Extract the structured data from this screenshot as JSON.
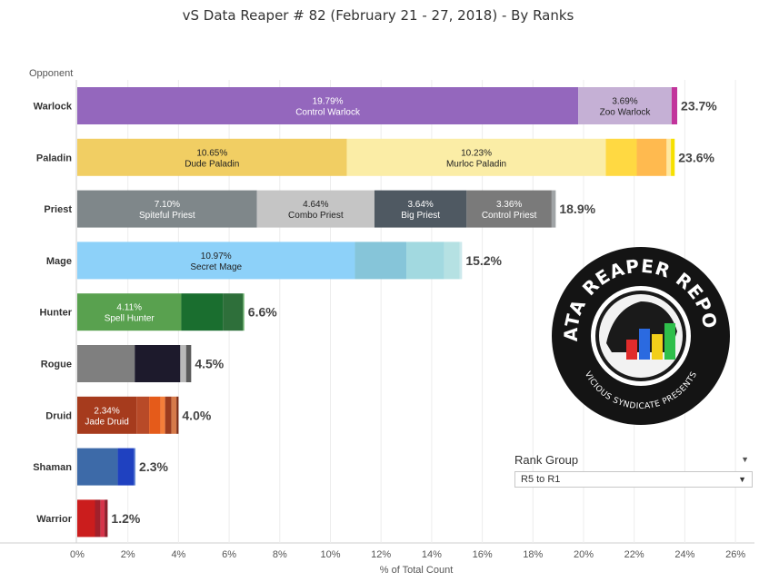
{
  "chart_data": {
    "type": "bar",
    "orientation": "horizontal",
    "stacked": true,
    "title": "vS Data Reaper #  82 (February 21 - 27, 2018) - By Ranks",
    "xlabel": "% of Total Count",
    "ylabel": "Opponent",
    "xlim": [
      0,
      26
    ],
    "x_ticks": [
      "0%",
      "2%",
      "4%",
      "6%",
      "8%",
      "10%",
      "12%",
      "14%",
      "16%",
      "18%",
      "20%",
      "22%",
      "24%",
      "26%"
    ],
    "grid": true,
    "categories": [
      "Warlock",
      "Paladin",
      "Priest",
      "Mage",
      "Hunter",
      "Rogue",
      "Druid",
      "Shaman",
      "Warrior"
    ],
    "totals": [
      "23.7%",
      "23.6%",
      "18.9%",
      "15.2%",
      "6.6%",
      "4.5%",
      "4.0%",
      "2.3%",
      "1.2%"
    ],
    "segments": [
      [
        {
          "value": 19.79,
          "color": "#9467bd",
          "pct": "19.79%",
          "name": "Control Warlock",
          "light": true
        },
        {
          "value": 3.69,
          "color": "#c5b0d5",
          "pct": "3.69%",
          "name": "Zoo Warlock",
          "light": false
        },
        {
          "value": 0.22,
          "color": "#c2349b",
          "pct": "",
          "name": "",
          "light": false
        }
      ],
      [
        {
          "value": 10.65,
          "color": "#f1ce63",
          "pct": "10.65%",
          "name": "Dude Paladin",
          "light": false
        },
        {
          "value": 10.23,
          "color": "#fbeda6",
          "pct": "10.23%",
          "name": "Murloc Paladin",
          "light": false
        },
        {
          "value": 1.22,
          "color": "#ffd942",
          "pct": "",
          "name": "",
          "light": false
        },
        {
          "value": 1.18,
          "color": "#ffba4f",
          "pct": "",
          "name": "",
          "light": false
        },
        {
          "value": 0.17,
          "color": "#ffe8a0",
          "pct": "",
          "name": "",
          "light": false
        },
        {
          "value": 0.15,
          "color": "#f6e000",
          "pct": "",
          "name": "",
          "light": false
        }
      ],
      [
        {
          "value": 7.1,
          "color": "#7f878a",
          "pct": "7.10%",
          "name": "Spiteful Priest",
          "light": true
        },
        {
          "value": 4.64,
          "color": "#c5c5c5",
          "pct": "4.64%",
          "name": "Combo Priest",
          "light": false
        },
        {
          "value": 3.64,
          "color": "#4f5962",
          "pct": "3.64%",
          "name": "Big Priest",
          "light": true
        },
        {
          "value": 3.36,
          "color": "#7a7a7a",
          "pct": "3.36%",
          "name": "Control Priest",
          "light": true
        },
        {
          "value": 0.16,
          "color": "#a0a4a6",
          "pct": "",
          "name": "",
          "light": false
        }
      ],
      [
        {
          "value": 10.97,
          "color": "#8dd1f9",
          "pct": "10.97%",
          "name": "Secret Mage",
          "light": false
        },
        {
          "value": 2.03,
          "color": "#86c5d9",
          "pct": "",
          "name": "",
          "light": false
        },
        {
          "value": 1.5,
          "color": "#a2d9e0",
          "pct": "",
          "name": "",
          "light": false
        },
        {
          "value": 0.6,
          "color": "#b5e1e3",
          "pct": "",
          "name": "",
          "light": false
        },
        {
          "value": 0.1,
          "color": "#cde9ec",
          "pct": "",
          "name": "",
          "light": false
        }
      ],
      [
        {
          "value": 4.11,
          "color": "#59a14f",
          "pct": "4.11%",
          "name": "Spell Hunter",
          "light": true
        },
        {
          "value": 1.64,
          "color": "#1a6e2f",
          "pct": "",
          "name": "",
          "light": false
        },
        {
          "value": 0.8,
          "color": "#2e6f3a",
          "pct": "",
          "name": "",
          "light": false
        },
        {
          "value": 0.05,
          "color": "#7cbf7c",
          "pct": "",
          "name": "",
          "light": false
        }
      ],
      [
        {
          "value": 2.27,
          "color": "#7f7f7f",
          "pct": "",
          "name": "",
          "light": false
        },
        {
          "value": 1.8,
          "color": "#1d1a2c",
          "pct": "",
          "name": "",
          "light": false
        },
        {
          "value": 0.23,
          "color": "#b9b9b9",
          "pct": "",
          "name": "",
          "light": false
        },
        {
          "value": 0.2,
          "color": "#5a5a5a",
          "pct": "",
          "name": "",
          "light": false
        }
      ],
      [
        {
          "value": 2.34,
          "color": "#a63b1d",
          "pct": "2.34%",
          "name": "Jade Druid",
          "light": true
        },
        {
          "value": 0.5,
          "color": "#b84a28",
          "pct": "",
          "name": "",
          "light": false
        },
        {
          "value": 0.45,
          "color": "#e55b1a",
          "pct": "",
          "name": "",
          "light": false
        },
        {
          "value": 0.18,
          "color": "#f47e3a",
          "pct": "",
          "name": "",
          "light": false
        },
        {
          "value": 0.25,
          "color": "#9b3b1e",
          "pct": "",
          "name": "",
          "light": false
        },
        {
          "value": 0.2,
          "color": "#d67a4a",
          "pct": "",
          "name": "",
          "light": false
        },
        {
          "value": 0.08,
          "color": "#7a2b14",
          "pct": "",
          "name": "",
          "light": false
        }
      ],
      [
        {
          "value": 1.6,
          "color": "#3d6aa8",
          "pct": "",
          "name": "",
          "light": false
        },
        {
          "value": 0.65,
          "color": "#1f41c0",
          "pct": "",
          "name": "",
          "light": false
        },
        {
          "value": 0.05,
          "color": "#6b8ed6",
          "pct": "",
          "name": "",
          "light": false
        }
      ],
      [
        {
          "value": 0.7,
          "color": "#cb1d1d",
          "pct": "",
          "name": "",
          "light": false
        },
        {
          "value": 0.22,
          "color": "#a1202b",
          "pct": "",
          "name": "",
          "light": false
        },
        {
          "value": 0.16,
          "color": "#d6334a",
          "pct": "",
          "name": "",
          "light": false
        },
        {
          "value": 0.12,
          "color": "#8c1f2c",
          "pct": "",
          "name": "",
          "light": false
        }
      ]
    ]
  },
  "rank_filter": {
    "title": "Rank Group",
    "selected": "R5 to R1",
    "menu_icon": "chevron-down-icon",
    "caret_icon": "caret-down-icon"
  },
  "logo": {
    "text": "DATA REAPER REPORT",
    "subtext": "VICIOUS SYNDICATE PRESENTS"
  }
}
